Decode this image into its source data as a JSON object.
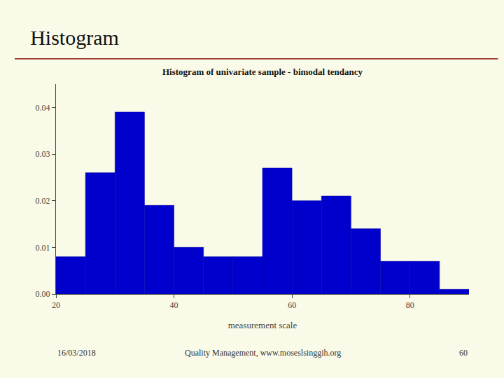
{
  "chart_data": {
    "type": "histogram",
    "title": "Histogram",
    "subtitle": "Histogram of univariate sample - bimodal tendancy",
    "x_label": "measurement scale",
    "bins": [
      20,
      25,
      30,
      35,
      40,
      45,
      50,
      55,
      60,
      65,
      70,
      75,
      80,
      85,
      90
    ],
    "values": [
      0.008,
      0.026,
      0.039,
      0.019,
      0.01,
      0.008,
      0.008,
      0.027,
      0.02,
      0.021,
      0.014,
      0.007,
      0.007,
      0.001
    ],
    "color": "#0000CC",
    "xlim": [
      20,
      90
    ],
    "xticks": [
      20,
      40,
      60,
      80
    ],
    "ylim": [
      0,
      0.045
    ],
    "yticks": [
      {
        "value": 0,
        "label": "0.00"
      },
      0.01,
      0.02,
      0.03,
      0.04
    ],
    "grid": false,
    "annotations": [
      "16/03/2018",
      "Quality Management, www.moseslsinggih.org",
      "60"
    ]
  }
}
